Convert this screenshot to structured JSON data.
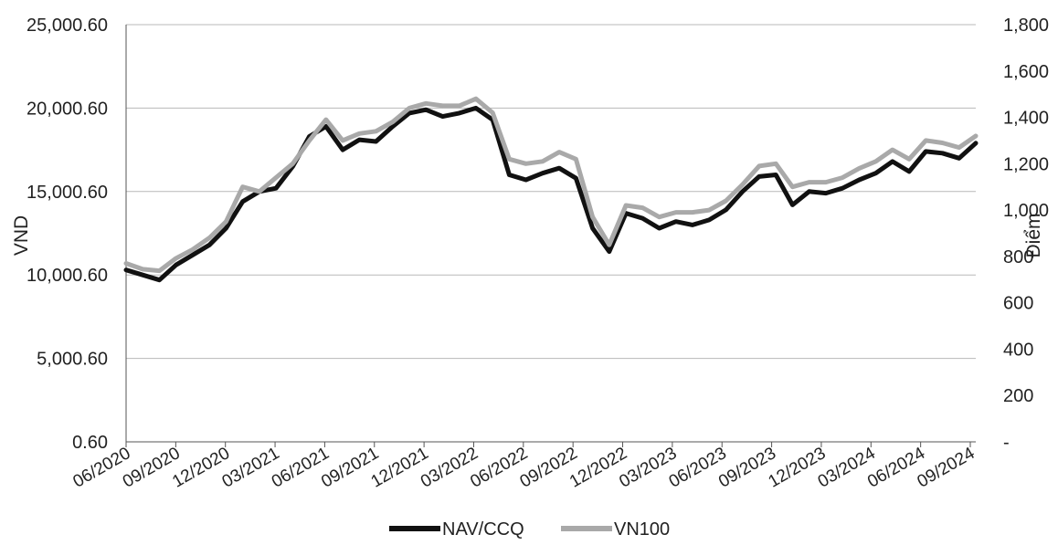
{
  "chart_data": {
    "type": "line",
    "title": "",
    "ylabel_left": "VND",
    "ylabel_right": "Điểm",
    "grid": true,
    "legend_position": "bottom",
    "x_tick_labels": [
      "06/2020",
      "09/2020",
      "12/2020",
      "03/2021",
      "06/2021",
      "09/2021",
      "12/2021",
      "03/2022",
      "06/2022",
      "09/2022",
      "12/2022",
      "03/2023",
      "06/2023",
      "09/2023",
      "12/2023",
      "03/2024",
      "06/2024",
      "09/2024"
    ],
    "y_left_ticks": [
      "0.60",
      "5,000.60",
      "10,000.60",
      "15,000.60",
      "20,000.60",
      "25,000.60"
    ],
    "y_left_range": [
      0.6,
      25000.6
    ],
    "y_right_ticks": [
      "-",
      "200",
      "400",
      "600",
      "800",
      "1,000",
      "1,200",
      "1,400",
      "1,600",
      "1,800"
    ],
    "y_right_range": [
      0,
      1800
    ],
    "x": [
      "2020-06",
      "2020-07",
      "2020-08",
      "2020-09",
      "2020-10",
      "2020-11",
      "2020-12",
      "2021-01",
      "2021-02",
      "2021-03",
      "2021-04",
      "2021-05",
      "2021-06",
      "2021-07",
      "2021-08",
      "2021-09",
      "2021-10",
      "2021-11",
      "2021-12",
      "2022-01",
      "2022-02",
      "2022-03",
      "2022-04",
      "2022-05",
      "2022-06",
      "2022-07",
      "2022-08",
      "2022-09",
      "2022-10",
      "2022-11",
      "2022-12",
      "2023-01",
      "2023-02",
      "2023-03",
      "2023-04",
      "2023-05",
      "2023-06",
      "2023-07",
      "2023-08",
      "2023-09",
      "2023-10",
      "2023-11",
      "2023-12",
      "2024-01",
      "2024-02",
      "2024-03",
      "2024-04",
      "2024-05",
      "2024-06",
      "2024-07",
      "2024-08",
      "2024-09"
    ],
    "series": [
      {
        "name": "NAV/CCQ",
        "axis": "left",
        "color": "#111111",
        "values": [
          10300,
          10000,
          9700,
          10600,
          11200,
          11800,
          12800,
          14400,
          15000,
          15200,
          16500,
          18300,
          18900,
          17500,
          18100,
          18000,
          18900,
          19700,
          19900,
          19500,
          19700,
          20000,
          19300,
          16000,
          15700,
          16100,
          16400,
          15800,
          12800,
          11400,
          13700,
          13400,
          12800,
          13200,
          13000,
          13300,
          13900,
          15000,
          15900,
          16000,
          14200,
          15000,
          14900,
          15200,
          15700,
          16100,
          16800,
          16200,
          17400,
          17300,
          17000,
          17900
        ]
      },
      {
        "name": "VN100",
        "axis": "right",
        "color": "#a9a9a9",
        "values": [
          770,
          745,
          738,
          792,
          830,
          880,
          950,
          1100,
          1080,
          1140,
          1200,
          1300,
          1390,
          1300,
          1330,
          1340,
          1380,
          1440,
          1460,
          1450,
          1450,
          1480,
          1420,
          1220,
          1200,
          1210,
          1250,
          1220,
          970,
          850,
          1020,
          1010,
          970,
          990,
          990,
          1000,
          1040,
          1110,
          1190,
          1200,
          1100,
          1120,
          1120,
          1140,
          1180,
          1210,
          1260,
          1220,
          1300,
          1290,
          1270,
          1320
        ]
      }
    ]
  },
  "legend": {
    "items": [
      {
        "label": "NAV/CCQ",
        "color": "#111111"
      },
      {
        "label": "VN100",
        "color": "#a9a9a9"
      }
    ]
  }
}
